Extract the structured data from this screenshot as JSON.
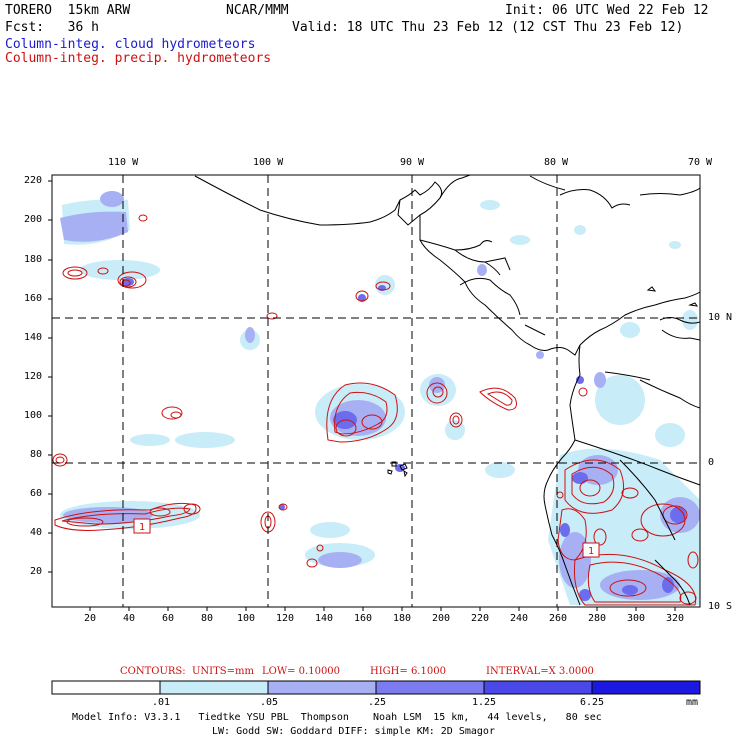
{
  "header": {
    "model": "TORERO  15km ARW",
    "org": "NCAR/MMM",
    "init": "Init: 06 UTC Wed 22 Feb 12",
    "fcst": "Fcst:   36 h",
    "valid": "Valid: 18 UTC Thu 23 Feb 12 (12 CST Thu 23 Feb 12)",
    "field_cloud": "Column-integ. cloud hydrometeors",
    "field_precip": "Column-integ. precip. hydrometeors"
  },
  "colors": {
    "cloud_legend": "#1a1acc",
    "precip_contour": "#cc1111",
    "fill_1": "#c8ecf8",
    "fill_2": "#a8b0f4",
    "fill_3": "#7c7cf0",
    "fill_4": "#4a48e8",
    "fill_5": "#1c18e0"
  },
  "map": {
    "lon_labels": [
      "110 W",
      "100 W",
      "90 W",
      "80 W",
      "70 W"
    ],
    "lat_labels": [
      "10 N",
      "0",
      "10 S"
    ],
    "y_ticks": [
      "220",
      "200",
      "180",
      "160",
      "140",
      "120",
      "100",
      "80",
      "60",
      "40",
      "20"
    ],
    "x_ticks": [
      "20",
      "40",
      "60",
      "80",
      "100",
      "120",
      "140",
      "160",
      "180",
      "200",
      "220",
      "240",
      "260",
      "280",
      "300",
      "320"
    ],
    "contour_labels": [
      "1",
      "1"
    ]
  },
  "contour_info": {
    "label": "CONTOURS:",
    "units": "UNITS=mm",
    "low": "LOW= 0.10000",
    "high": "HIGH= 6.1000",
    "interval": "INTERVAL=X 3.0000"
  },
  "colorbar": {
    "thresholds": [
      ".01",
      ".05",
      ".25",
      "1.25",
      "6.25"
    ],
    "unit": "mm"
  },
  "footer": {
    "line1": "Model Info: V3.3.1   Tiedtke YSU PBL  Thompson    Noah LSM  15 km,   44 levels,   80 sec",
    "line2": "LW: Godd SW: Goddard DIFF: simple KM: 2D Smagor"
  }
}
